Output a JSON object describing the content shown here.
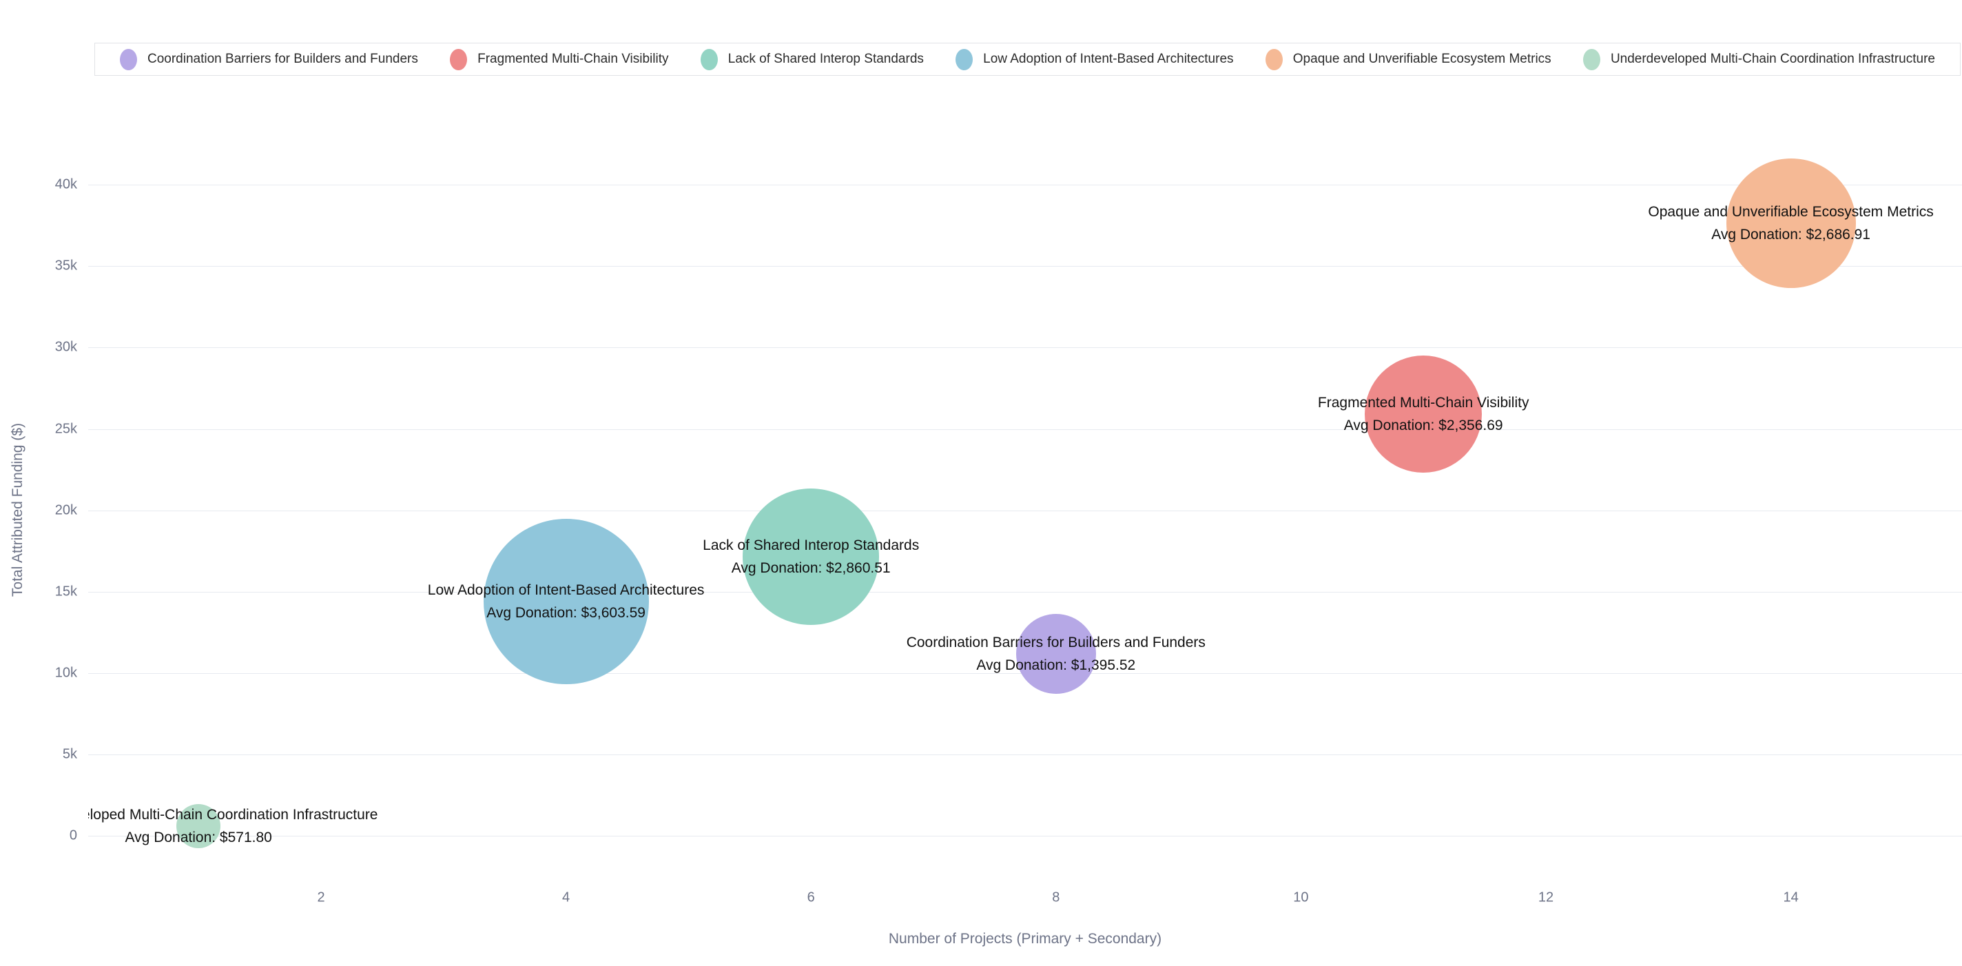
{
  "chart_data": {
    "type": "scatter",
    "subtype": "bubble",
    "title": "",
    "xlabel": "Number of Projects (Primary + Secondary)",
    "ylabel": "Total Attributed Funding ($)",
    "xlim": [
      0.1,
      15.4
    ],
    "ylim": [
      -2200,
      42500
    ],
    "grid": "horizontal-only",
    "legend_position": "top",
    "label_text_color": "#111111",
    "axis_text_color": "#6d7387",
    "gridline_color": "#e7eaf0",
    "size_encoding": "Avg Donation ($)",
    "xticks": {
      "values": [
        2,
        4,
        6,
        8,
        10,
        12,
        14
      ],
      "labels": [
        "2",
        "4",
        "6",
        "8",
        "10",
        "12",
        "14"
      ]
    },
    "yticks": {
      "values": [
        0,
        5000,
        10000,
        15000,
        20000,
        25000,
        30000,
        35000,
        40000
      ],
      "labels": [
        "0",
        "5k",
        "10k",
        "15k",
        "20k",
        "25k",
        "30k",
        "35k",
        "40k"
      ]
    },
    "series": [
      {
        "name": "Coordination Barriers for Builders and Funders",
        "color": "#b6a8e6",
        "projects": 8,
        "total_funding": 11164.16,
        "avg_donation": 1395.52,
        "avg_label": "Avg Donation: $1,395.52",
        "bubble_radius_px": 58
      },
      {
        "name": "Fragmented Multi-Chain Visibility",
        "color": "#ee8a8a",
        "projects": 11,
        "total_funding": 25923.59,
        "avg_donation": 2356.69,
        "avg_label": "Avg Donation: $2,356.69",
        "bubble_radius_px": 85
      },
      {
        "name": "Lack of Shared Interop Standards",
        "color": "#93d4c4",
        "projects": 6,
        "total_funding": 17163.06,
        "avg_donation": 2860.51,
        "avg_label": "Avg Donation: $2,860.51",
        "bubble_radius_px": 99
      },
      {
        "name": "Low Adoption of Intent-Based Architectures",
        "color": "#90c6db",
        "projects": 4,
        "total_funding": 14414.36,
        "avg_donation": 3603.59,
        "avg_label": "Avg Donation: $3,603.59",
        "bubble_radius_px": 120
      },
      {
        "name": "Opaque and Unverifiable Ecosystem Metrics",
        "color": "#f5b995",
        "projects": 14,
        "total_funding": 37616.74,
        "avg_donation": 2686.91,
        "avg_label": "Avg Donation: $2,686.91",
        "bubble_radius_px": 94
      },
      {
        "name": "Underdeveloped Multi-Chain Coordination Infrastructure",
        "color": "#b3dcc8",
        "projects": 1,
        "total_funding": 571.8,
        "avg_donation": 571.8,
        "avg_label": "Avg Donation: $571.80",
        "bubble_radius_px": 32
      }
    ]
  }
}
